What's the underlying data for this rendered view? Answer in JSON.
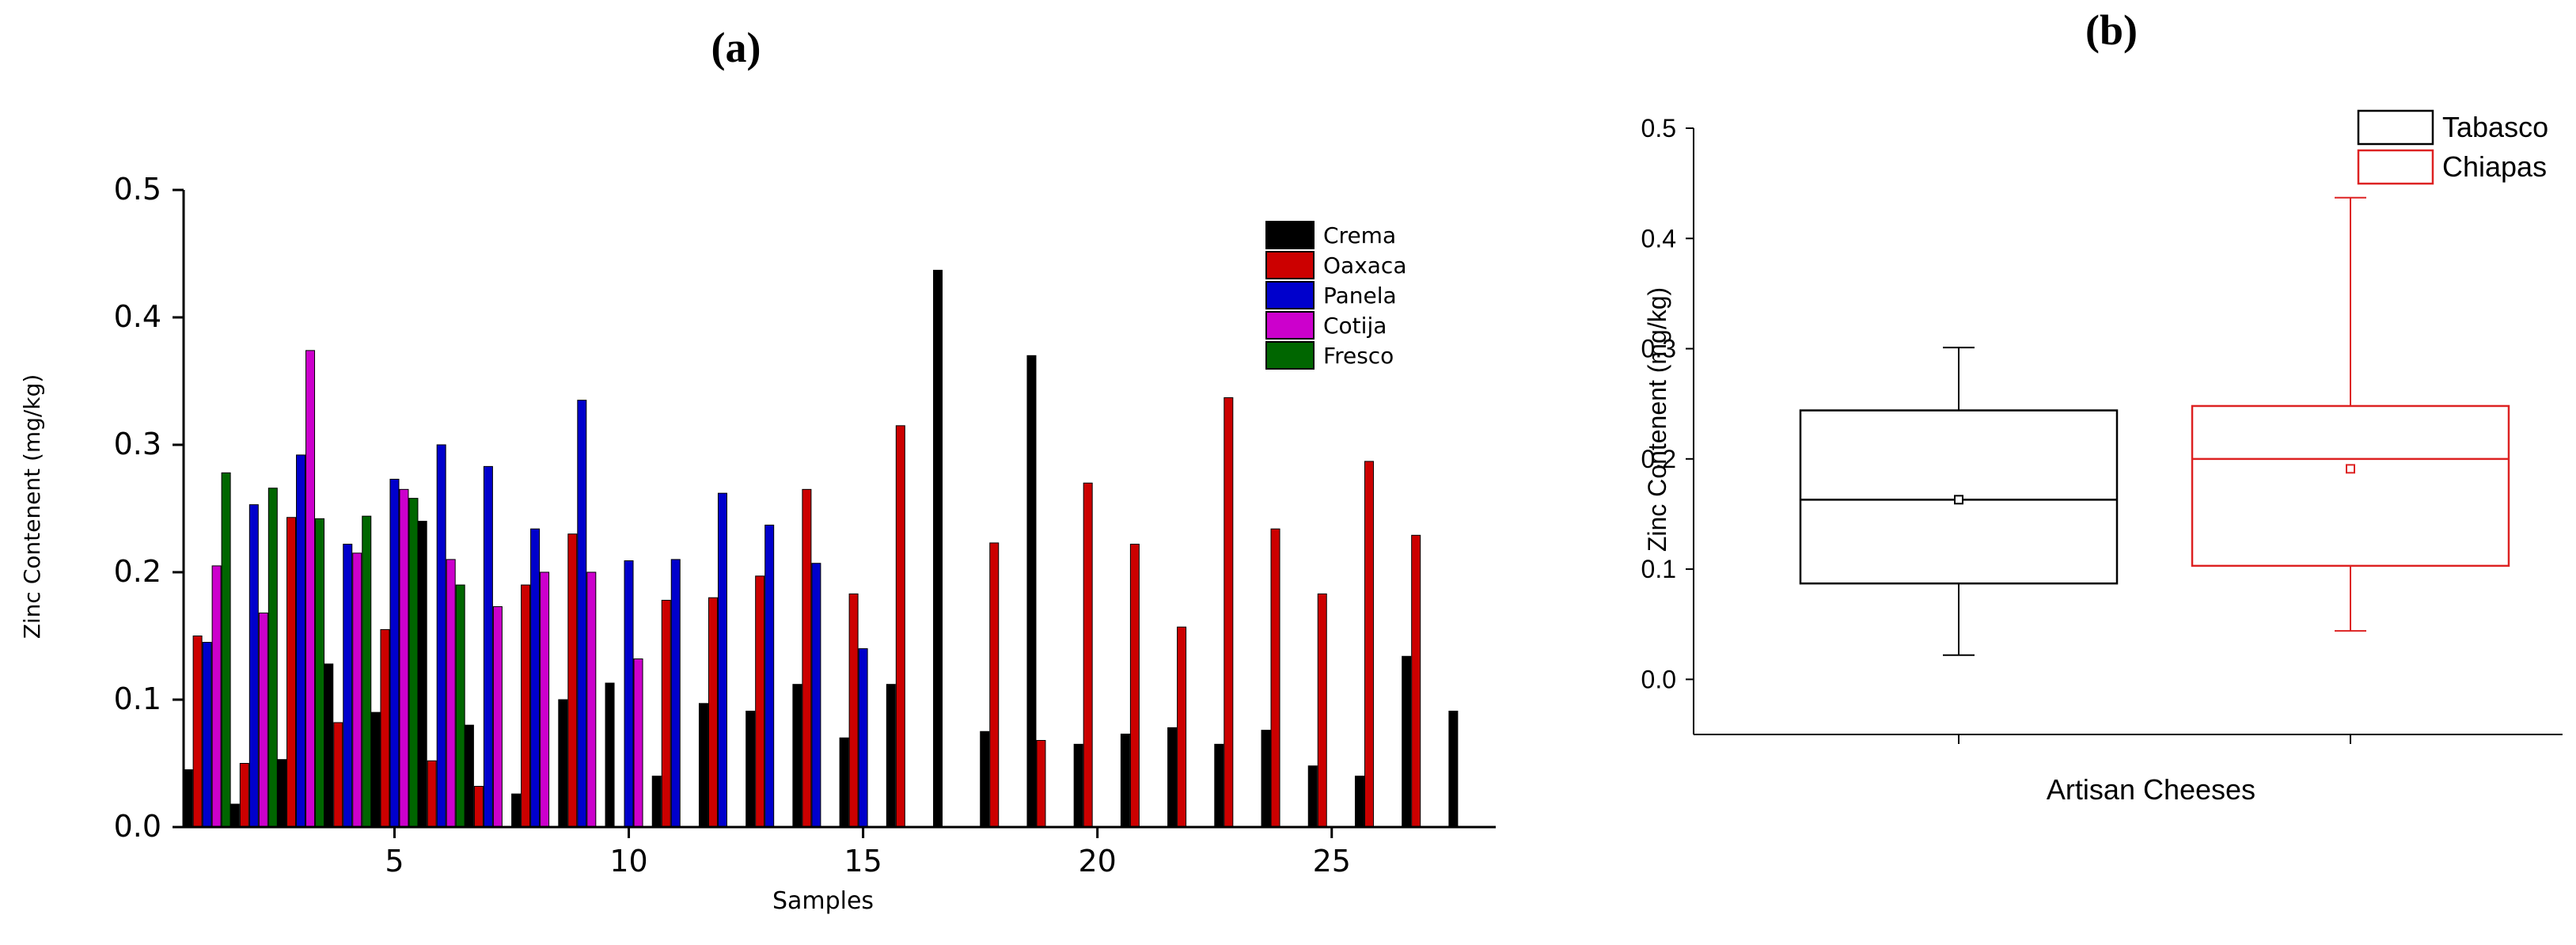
{
  "figure": {
    "label_a": "(a)",
    "label_b": "(b)"
  },
  "chart_data": [
    {
      "type": "bar",
      "xlabel": "Samples",
      "ylabel": "Zinc Contenent (mg/kg)",
      "ylim": [
        0,
        0.5
      ],
      "yticks": [
        "0.0",
        "0.1",
        "0.2",
        "0.3",
        "0.4",
        "0.5"
      ],
      "xticks": [
        "5",
        "10",
        "15",
        "20",
        "25"
      ],
      "xlim": [
        0.5,
        28.5
      ],
      "grid": false,
      "legend_position": "top-right",
      "x": [
        1,
        2,
        3,
        4,
        5,
        6,
        7,
        8,
        9,
        10,
        11,
        12,
        13,
        14,
        15,
        16,
        17,
        18,
        19,
        20,
        21,
        22,
        23,
        24,
        25,
        26,
        27,
        28
      ],
      "series": [
        {
          "name": "Crema",
          "color": "#000000",
          "values": [
            0.045,
            0.018,
            0.053,
            0.128,
            0.09,
            0.24,
            0.08,
            0.026,
            0.1,
            0.113,
            0.04,
            0.097,
            0.091,
            0.112,
            0.07,
            0.112,
            0.437,
            0.075,
            0.37,
            0.065,
            0.073,
            0.078,
            0.065,
            0.076,
            0.048,
            0.04,
            0.134,
            0.091
          ]
        },
        {
          "name": "Oaxaca",
          "color": "#cc0000",
          "values": [
            0.15,
            0.05,
            0.243,
            0.082,
            0.155,
            0.052,
            0.032,
            0.19,
            0.23,
            null,
            0.178,
            0.18,
            0.197,
            0.265,
            0.183,
            0.315,
            null,
            0.223,
            0.068,
            0.27,
            0.222,
            0.157,
            0.337,
            0.234,
            0.183,
            0.287,
            0.229,
            null
          ]
        },
        {
          "name": "Panela",
          "color": "#0000cc",
          "values": [
            0.145,
            0.253,
            0.292,
            0.222,
            0.273,
            0.3,
            0.283,
            0.234,
            0.335,
            0.209,
            0.21,
            0.262,
            0.237,
            0.207,
            0.14,
            null,
            null,
            null,
            null,
            null,
            null,
            null,
            null,
            null,
            null,
            null,
            null,
            null
          ]
        },
        {
          "name": "Cotija",
          "color": "#cc00cc",
          "values": [
            0.205,
            0.168,
            0.374,
            0.215,
            0.265,
            0.21,
            0.173,
            0.2,
            0.2,
            0.132,
            null,
            null,
            null,
            null,
            null,
            null,
            null,
            null,
            null,
            null,
            null,
            null,
            null,
            null,
            null,
            null,
            null,
            null
          ]
        },
        {
          "name": "Fresco",
          "color": "#006600",
          "values": [
            0.278,
            0.266,
            0.242,
            0.244,
            0.258,
            0.19,
            null,
            null,
            null,
            null,
            null,
            null,
            null,
            null,
            null,
            null,
            null,
            null,
            null,
            null,
            null,
            null,
            null,
            null,
            null,
            null,
            null,
            null
          ]
        }
      ]
    },
    {
      "type": "box",
      "xlabel": "Artisan Cheeses",
      "ylabel": "Zinc Contenent (mg/kg)",
      "ylim": [
        -0.05,
        0.5
      ],
      "yticks": [
        "0.0",
        "0.1",
        "0.2",
        "0.3",
        "0.4",
        "0.5"
      ],
      "legend_position": "top-right",
      "grid": false,
      "series": [
        {
          "name": "Tabasco",
          "color": "#000000",
          "whisker_low": 0.022,
          "q1": 0.087,
          "median": 0.163,
          "mean": 0.163,
          "q3": 0.244,
          "whisker_high": 0.301
        },
        {
          "name": "Chiapas",
          "color": "#dd2222",
          "whisker_low": 0.044,
          "q1": 0.103,
          "median": 0.2,
          "mean": 0.191,
          "q3": 0.248,
          "whisker_high": 0.437
        }
      ]
    }
  ]
}
